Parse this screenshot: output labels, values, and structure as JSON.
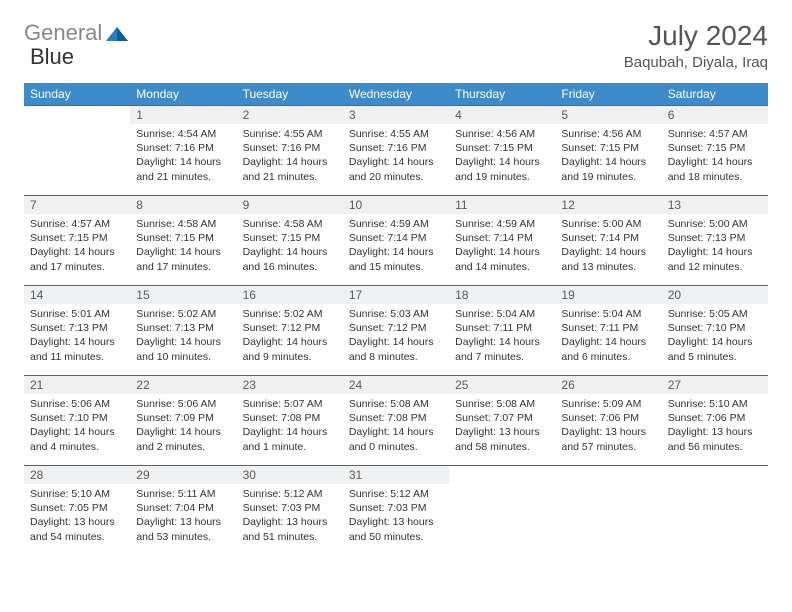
{
  "logo": {
    "part1": "General",
    "part2": "Blue"
  },
  "title": "July 2024",
  "location": "Baqubah, Diyala, Iraq",
  "colors": {
    "header_bg": "#3d8bc9",
    "header_text": "#ffffff",
    "daynum_bg": "#eef0f2",
    "rule": "#2b6ca3",
    "logo_gray": "#888888",
    "logo_blue": "#2b7bbf"
  },
  "dow": [
    "Sunday",
    "Monday",
    "Tuesday",
    "Wednesday",
    "Thursday",
    "Friday",
    "Saturday"
  ],
  "weeks": [
    [
      null,
      {
        "n": "1",
        "sr": "Sunrise: 4:54 AM",
        "ss": "Sunset: 7:16 PM",
        "dl1": "Daylight: 14 hours",
        "dl2": "and 21 minutes."
      },
      {
        "n": "2",
        "sr": "Sunrise: 4:55 AM",
        "ss": "Sunset: 7:16 PM",
        "dl1": "Daylight: 14 hours",
        "dl2": "and 21 minutes."
      },
      {
        "n": "3",
        "sr": "Sunrise: 4:55 AM",
        "ss": "Sunset: 7:16 PM",
        "dl1": "Daylight: 14 hours",
        "dl2": "and 20 minutes."
      },
      {
        "n": "4",
        "sr": "Sunrise: 4:56 AM",
        "ss": "Sunset: 7:15 PM",
        "dl1": "Daylight: 14 hours",
        "dl2": "and 19 minutes."
      },
      {
        "n": "5",
        "sr": "Sunrise: 4:56 AM",
        "ss": "Sunset: 7:15 PM",
        "dl1": "Daylight: 14 hours",
        "dl2": "and 19 minutes."
      },
      {
        "n": "6",
        "sr": "Sunrise: 4:57 AM",
        "ss": "Sunset: 7:15 PM",
        "dl1": "Daylight: 14 hours",
        "dl2": "and 18 minutes."
      }
    ],
    [
      {
        "n": "7",
        "sr": "Sunrise: 4:57 AM",
        "ss": "Sunset: 7:15 PM",
        "dl1": "Daylight: 14 hours",
        "dl2": "and 17 minutes."
      },
      {
        "n": "8",
        "sr": "Sunrise: 4:58 AM",
        "ss": "Sunset: 7:15 PM",
        "dl1": "Daylight: 14 hours",
        "dl2": "and 17 minutes."
      },
      {
        "n": "9",
        "sr": "Sunrise: 4:58 AM",
        "ss": "Sunset: 7:15 PM",
        "dl1": "Daylight: 14 hours",
        "dl2": "and 16 minutes."
      },
      {
        "n": "10",
        "sr": "Sunrise: 4:59 AM",
        "ss": "Sunset: 7:14 PM",
        "dl1": "Daylight: 14 hours",
        "dl2": "and 15 minutes."
      },
      {
        "n": "11",
        "sr": "Sunrise: 4:59 AM",
        "ss": "Sunset: 7:14 PM",
        "dl1": "Daylight: 14 hours",
        "dl2": "and 14 minutes."
      },
      {
        "n": "12",
        "sr": "Sunrise: 5:00 AM",
        "ss": "Sunset: 7:14 PM",
        "dl1": "Daylight: 14 hours",
        "dl2": "and 13 minutes."
      },
      {
        "n": "13",
        "sr": "Sunrise: 5:00 AM",
        "ss": "Sunset: 7:13 PM",
        "dl1": "Daylight: 14 hours",
        "dl2": "and 12 minutes."
      }
    ],
    [
      {
        "n": "14",
        "sr": "Sunrise: 5:01 AM",
        "ss": "Sunset: 7:13 PM",
        "dl1": "Daylight: 14 hours",
        "dl2": "and 11 minutes."
      },
      {
        "n": "15",
        "sr": "Sunrise: 5:02 AM",
        "ss": "Sunset: 7:13 PM",
        "dl1": "Daylight: 14 hours",
        "dl2": "and 10 minutes."
      },
      {
        "n": "16",
        "sr": "Sunrise: 5:02 AM",
        "ss": "Sunset: 7:12 PM",
        "dl1": "Daylight: 14 hours",
        "dl2": "and 9 minutes."
      },
      {
        "n": "17",
        "sr": "Sunrise: 5:03 AM",
        "ss": "Sunset: 7:12 PM",
        "dl1": "Daylight: 14 hours",
        "dl2": "and 8 minutes."
      },
      {
        "n": "18",
        "sr": "Sunrise: 5:04 AM",
        "ss": "Sunset: 7:11 PM",
        "dl1": "Daylight: 14 hours",
        "dl2": "and 7 minutes."
      },
      {
        "n": "19",
        "sr": "Sunrise: 5:04 AM",
        "ss": "Sunset: 7:11 PM",
        "dl1": "Daylight: 14 hours",
        "dl2": "and 6 minutes."
      },
      {
        "n": "20",
        "sr": "Sunrise: 5:05 AM",
        "ss": "Sunset: 7:10 PM",
        "dl1": "Daylight: 14 hours",
        "dl2": "and 5 minutes."
      }
    ],
    [
      {
        "n": "21",
        "sr": "Sunrise: 5:06 AM",
        "ss": "Sunset: 7:10 PM",
        "dl1": "Daylight: 14 hours",
        "dl2": "and 4 minutes."
      },
      {
        "n": "22",
        "sr": "Sunrise: 5:06 AM",
        "ss": "Sunset: 7:09 PM",
        "dl1": "Daylight: 14 hours",
        "dl2": "and 2 minutes."
      },
      {
        "n": "23",
        "sr": "Sunrise: 5:07 AM",
        "ss": "Sunset: 7:08 PM",
        "dl1": "Daylight: 14 hours",
        "dl2": "and 1 minute."
      },
      {
        "n": "24",
        "sr": "Sunrise: 5:08 AM",
        "ss": "Sunset: 7:08 PM",
        "dl1": "Daylight: 14 hours",
        "dl2": "and 0 minutes."
      },
      {
        "n": "25",
        "sr": "Sunrise: 5:08 AM",
        "ss": "Sunset: 7:07 PM",
        "dl1": "Daylight: 13 hours",
        "dl2": "and 58 minutes."
      },
      {
        "n": "26",
        "sr": "Sunrise: 5:09 AM",
        "ss": "Sunset: 7:06 PM",
        "dl1": "Daylight: 13 hours",
        "dl2": "and 57 minutes."
      },
      {
        "n": "27",
        "sr": "Sunrise: 5:10 AM",
        "ss": "Sunset: 7:06 PM",
        "dl1": "Daylight: 13 hours",
        "dl2": "and 56 minutes."
      }
    ],
    [
      {
        "n": "28",
        "sr": "Sunrise: 5:10 AM",
        "ss": "Sunset: 7:05 PM",
        "dl1": "Daylight: 13 hours",
        "dl2": "and 54 minutes."
      },
      {
        "n": "29",
        "sr": "Sunrise: 5:11 AM",
        "ss": "Sunset: 7:04 PM",
        "dl1": "Daylight: 13 hours",
        "dl2": "and 53 minutes."
      },
      {
        "n": "30",
        "sr": "Sunrise: 5:12 AM",
        "ss": "Sunset: 7:03 PM",
        "dl1": "Daylight: 13 hours",
        "dl2": "and 51 minutes."
      },
      {
        "n": "31",
        "sr": "Sunrise: 5:12 AM",
        "ss": "Sunset: 7:03 PM",
        "dl1": "Daylight: 13 hours",
        "dl2": "and 50 minutes."
      },
      null,
      null,
      null
    ]
  ]
}
